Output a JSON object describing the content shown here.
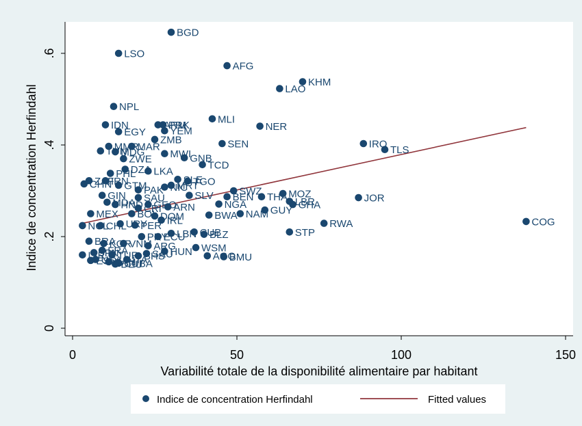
{
  "chart_data": {
    "type": "scatter",
    "xlabel": "Variabilité totale de la disponibilité alimentaire par habitant",
    "ylabel": "Indice de concentration Herfindahl",
    "xlim": [
      0,
      150
    ],
    "ylim": [
      0,
      0.65
    ],
    "x_ticks": [
      0,
      50,
      100,
      150
    ],
    "x_tick_labels": [
      "0",
      "50",
      "100",
      "150"
    ],
    "y_ticks": [
      0,
      0.2,
      0.4,
      0.6
    ],
    "y_tick_labels": [
      "0",
      ".2",
      ".4",
      ".6"
    ],
    "grid": false,
    "legend_position": "bottom",
    "colors": {
      "points": "#1a476f",
      "fit": "#90353b",
      "background": "#eaf2f3",
      "plot": "#ffffff"
    },
    "series": [
      {
        "name": "Indice de concentration Herfindahl",
        "kind": "scatter",
        "points": [
          {
            "label": "BGD",
            "x": 30.0,
            "y": 0.646
          },
          {
            "label": "LSO",
            "x": 14.0,
            "y": 0.6
          },
          {
            "label": "AFG",
            "x": 47.0,
            "y": 0.573
          },
          {
            "label": "KHM",
            "x": 70.0,
            "y": 0.538
          },
          {
            "label": "LAO",
            "x": 63.0,
            "y": 0.523
          },
          {
            "label": "NPL",
            "x": 12.5,
            "y": 0.484
          },
          {
            "label": "MLI",
            "x": 42.5,
            "y": 0.457
          },
          {
            "label": "NER",
            "x": 57.0,
            "y": 0.441
          },
          {
            "label": "IDN",
            "x": 10.0,
            "y": 0.444
          },
          {
            "label": "EGY",
            "x": 14.0,
            "y": 0.429
          },
          {
            "label": "ARM",
            "x": 26.0,
            "y": 0.444
          },
          {
            "label": "PRK",
            "x": 27.5,
            "y": 0.444
          },
          {
            "label": "YEM",
            "x": 28.0,
            "y": 0.431
          },
          {
            "label": "ZMB",
            "x": 25.0,
            "y": 0.412
          },
          {
            "label": "SEN",
            "x": 45.5,
            "y": 0.403
          },
          {
            "label": "IRQ",
            "x": 88.5,
            "y": 0.403
          },
          {
            "label": "TLS",
            "x": 95.0,
            "y": 0.39
          },
          {
            "label": "MMR",
            "x": 11.0,
            "y": 0.397
          },
          {
            "label": "MAR",
            "x": 18.0,
            "y": 0.397
          },
          {
            "label": "TUN",
            "x": 8.5,
            "y": 0.387
          },
          {
            "label": "MDG",
            "x": 13.0,
            "y": 0.385
          },
          {
            "label": "MWI",
            "x": 28.0,
            "y": 0.381
          },
          {
            "label": "GNB",
            "x": 34.0,
            "y": 0.372
          },
          {
            "label": "ZWE",
            "x": 15.5,
            "y": 0.37
          },
          {
            "label": "TCD",
            "x": 39.5,
            "y": 0.357
          },
          {
            "label": "DZA",
            "x": 16.0,
            "y": 0.347
          },
          {
            "label": "LKA",
            "x": 23.0,
            "y": 0.343
          },
          {
            "label": "PHL",
            "x": 11.5,
            "y": 0.338
          },
          {
            "label": "SLE",
            "x": 32.0,
            "y": 0.325
          },
          {
            "label": "TGO",
            "x": 35.0,
            "y": 0.321
          },
          {
            "label": "ZAF",
            "x": 5.0,
            "y": 0.322
          },
          {
            "label": "IRN",
            "x": 10.0,
            "y": 0.322
          },
          {
            "label": "CHN",
            "x": 3.5,
            "y": 0.315
          },
          {
            "label": "GTM",
            "x": 14.0,
            "y": 0.312
          },
          {
            "label": "MRT",
            "x": 30.0,
            "y": 0.312
          },
          {
            "label": "NIC",
            "x": 28.0,
            "y": 0.308
          },
          {
            "label": "PAK",
            "x": 20.0,
            "y": 0.302
          },
          {
            "label": "SWZ",
            "x": 49.0,
            "y": 0.3
          },
          {
            "label": "MOZ",
            "x": 64.0,
            "y": 0.294
          },
          {
            "label": "GIN",
            "x": 9.0,
            "y": 0.29
          },
          {
            "label": "SAU",
            "x": 20.0,
            "y": 0.285
          },
          {
            "label": "SLV",
            "x": 35.5,
            "y": 0.29
          },
          {
            "label": "BEN",
            "x": 47.0,
            "y": 0.287
          },
          {
            "label": "THA",
            "x": 57.5,
            "y": 0.287
          },
          {
            "label": "JOR",
            "x": 87.0,
            "y": 0.285
          },
          {
            "label": "LBR",
            "x": 66.0,
            "y": 0.277
          },
          {
            "label": "GHA",
            "x": 67.0,
            "y": 0.27
          },
          {
            "label": "NGA",
            "x": 44.5,
            "y": 0.271
          },
          {
            "label": "MDA",
            "x": 10.5,
            "y": 0.275
          },
          {
            "label": "HND",
            "x": 13.0,
            "y": 0.27
          },
          {
            "label": "GEO",
            "x": 23.0,
            "y": 0.27
          },
          {
            "label": "CRI",
            "x": 20.0,
            "y": 0.262
          },
          {
            "label": "ARN",
            "x": 29.0,
            "y": 0.265
          },
          {
            "label": "GUY",
            "x": 58.5,
            "y": 0.258
          },
          {
            "label": "NAM",
            "x": 51.0,
            "y": 0.25
          },
          {
            "label": "BWA",
            "x": 41.5,
            "y": 0.247
          },
          {
            "label": "MEX",
            "x": 5.5,
            "y": 0.25
          },
          {
            "label": "BOL",
            "x": 18.0,
            "y": 0.25
          },
          {
            "label": "DOM",
            "x": 25.0,
            "y": 0.245
          },
          {
            "label": "IRL",
            "x": 27.0,
            "y": 0.236
          },
          {
            "label": "RWA",
            "x": 76.5,
            "y": 0.229
          },
          {
            "label": "COG",
            "x": 138.0,
            "y": 0.233
          },
          {
            "label": "CHL",
            "x": 8.5,
            "y": 0.224
          },
          {
            "label": "NCL",
            "x": 3.0,
            "y": 0.224
          },
          {
            "label": "URY",
            "x": 14.5,
            "y": 0.228
          },
          {
            "label": "PER",
            "x": 19.0,
            "y": 0.225
          },
          {
            "label": "STP",
            "x": 66.0,
            "y": 0.21
          },
          {
            "label": "CUB",
            "x": 37.0,
            "y": 0.21
          },
          {
            "label": "BLZ",
            "x": 40.0,
            "y": 0.205
          },
          {
            "label": "LBN",
            "x": 30.0,
            "y": 0.207
          },
          {
            "label": "ECU",
            "x": 26.0,
            "y": 0.2
          },
          {
            "label": "PRY",
            "x": 21.0,
            "y": 0.2
          },
          {
            "label": "BRA",
            "x": 5.0,
            "y": 0.19
          },
          {
            "label": "KOR",
            "x": 9.5,
            "y": 0.185
          },
          {
            "label": "VNM",
            "x": 15.5,
            "y": 0.185
          },
          {
            "label": "ARG",
            "x": 23.0,
            "y": 0.18
          },
          {
            "label": "WSM",
            "x": 37.5,
            "y": 0.176
          },
          {
            "label": "HUN",
            "x": 28.0,
            "y": 0.168
          },
          {
            "label": "AGO",
            "x": 41.0,
            "y": 0.158
          },
          {
            "label": "BMU",
            "x": 46.0,
            "y": 0.156
          },
          {
            "label": "ISR",
            "x": 3.0,
            "y": 0.16
          },
          {
            "label": "JPN",
            "x": 6.5,
            "y": 0.165
          },
          {
            "label": "FRA",
            "x": 9.0,
            "y": 0.17
          },
          {
            "label": "TUR",
            "x": 12.0,
            "y": 0.16
          },
          {
            "label": "BHS",
            "x": 20.0,
            "y": 0.158
          },
          {
            "label": "SAU",
            "x": 22.5,
            "y": 0.163
          },
          {
            "label": "USA",
            "x": 7.0,
            "y": 0.15
          },
          {
            "label": "CAN",
            "x": 11.0,
            "y": 0.145
          },
          {
            "label": "CUBA",
            "x": 14.0,
            "y": 0.142
          },
          {
            "label": "ITA",
            "x": 16.5,
            "y": 0.15
          },
          {
            "label": "ESP",
            "x": 5.5,
            "y": 0.148
          },
          {
            "label": "DEU",
            "x": 13.0,
            "y": 0.14
          }
        ]
      },
      {
        "name": "Fitted values",
        "kind": "line",
        "x": [
          3.0,
          138.0
        ],
        "y": [
          0.229,
          0.438
        ]
      }
    ]
  }
}
